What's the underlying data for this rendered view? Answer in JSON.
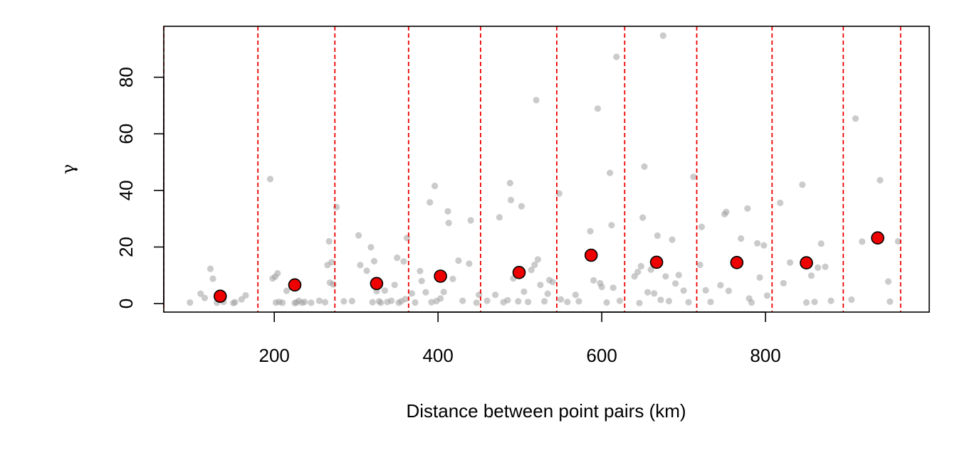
{
  "chart_data": {
    "type": "scatter",
    "title": "",
    "xlabel": "Distance between point pairs (km)",
    "ylabel": "γ",
    "xlim": [
      65,
      1000
    ],
    "ylim": [
      -3,
      98
    ],
    "x_ticks": [
      200,
      400,
      600,
      800
    ],
    "y_ticks": [
      0,
      20,
      40,
      60,
      80
    ],
    "grid": false,
    "legend": "none",
    "colors": {
      "points": "#a0a0a0",
      "binned": "#ee0000",
      "binned_edge": "#000000",
      "breaks": "#ee0000"
    },
    "bin_breaks": [
      65,
      180,
      274,
      364,
      452,
      545,
      628,
      716,
      808,
      895,
      965
    ],
    "binned_semivariance": [
      {
        "x": 134,
        "y": 2.6
      },
      {
        "x": 225,
        "y": 6.6
      },
      {
        "x": 325,
        "y": 7.1
      },
      {
        "x": 403,
        "y": 9.7
      },
      {
        "x": 499,
        "y": 11.0
      },
      {
        "x": 587,
        "y": 17.1
      },
      {
        "x": 667,
        "y": 14.6
      },
      {
        "x": 765,
        "y": 14.5
      },
      {
        "x": 850,
        "y": 14.4
      },
      {
        "x": 937,
        "y": 23.2
      }
    ],
    "pairs": [
      [
        97,
        0.4
      ],
      [
        110,
        3.5
      ],
      [
        115,
        2.0
      ],
      [
        122,
        12.3
      ],
      [
        125,
        8.8
      ],
      [
        130,
        0.3
      ],
      [
        138,
        0.6
      ],
      [
        150,
        0.2
      ],
      [
        152,
        0.5
      ],
      [
        160,
        1.5
      ],
      [
        165,
        2.9
      ],
      [
        195,
        44
      ],
      [
        198,
        8.9
      ],
      [
        201,
        9.5
      ],
      [
        202,
        0.4
      ],
      [
        204,
        10.7
      ],
      [
        206,
        0.6
      ],
      [
        210,
        0.3
      ],
      [
        215,
        4.5
      ],
      [
        225,
        0.2
      ],
      [
        227,
        0.4
      ],
      [
        230,
        1.0
      ],
      [
        234,
        0.3
      ],
      [
        237,
        0.6
      ],
      [
        245,
        0.3
      ],
      [
        255,
        1.0
      ],
      [
        262,
        0.5
      ],
      [
        265,
        13.6
      ],
      [
        267,
        22.0
      ],
      [
        268,
        7.4
      ],
      [
        270,
        14.6
      ],
      [
        272,
        6.8
      ],
      [
        276,
        34.1
      ],
      [
        285,
        0.8
      ],
      [
        295,
        0.9
      ],
      [
        303,
        24.1
      ],
      [
        305,
        13.6
      ],
      [
        313,
        11.6
      ],
      [
        318,
        19.9
      ],
      [
        320,
        0.5
      ],
      [
        322,
        15.0
      ],
      [
        325,
        4.4
      ],
      [
        328,
        0.8
      ],
      [
        330,
        0.3
      ],
      [
        335,
        4.6
      ],
      [
        338,
        0.6
      ],
      [
        343,
        1.0
      ],
      [
        347,
        6.6
      ],
      [
        350,
        16.2
      ],
      [
        352,
        0.3
      ],
      [
        355,
        0.8
      ],
      [
        358,
        14.9
      ],
      [
        360,
        1.6
      ],
      [
        362,
        23.2
      ],
      [
        368,
        3.6
      ],
      [
        372,
        0.4
      ],
      [
        378,
        11.5
      ],
      [
        380,
        8.0
      ],
      [
        385,
        4.0
      ],
      [
        390,
        35.8
      ],
      [
        392,
        0.5
      ],
      [
        396,
        41.6
      ],
      [
        398,
        0.9
      ],
      [
        403,
        1.8
      ],
      [
        407,
        4.1
      ],
      [
        412,
        32.6
      ],
      [
        413,
        28.5
      ],
      [
        418,
        8.7
      ],
      [
        425,
        15.2
      ],
      [
        430,
        1.0
      ],
      [
        438,
        14.1
      ],
      [
        440,
        29.4
      ],
      [
        447,
        0.3
      ],
      [
        450,
        3.1
      ],
      [
        460,
        1.0
      ],
      [
        470,
        3.1
      ],
      [
        475,
        30.5
      ],
      [
        480,
        0.5
      ],
      [
        485,
        1.2
      ],
      [
        488,
        42.6
      ],
      [
        489,
        36.6
      ],
      [
        492,
        8.9
      ],
      [
        498,
        0.8
      ],
      [
        502,
        34.4
      ],
      [
        505,
        4.2
      ],
      [
        510,
        0.6
      ],
      [
        514,
        11.9
      ],
      [
        518,
        13.7
      ],
      [
        520,
        71.9
      ],
      [
        522,
        15.6
      ],
      [
        525,
        6.6
      ],
      [
        530,
        0.8
      ],
      [
        534,
        3.5
      ],
      [
        536,
        8.3
      ],
      [
        540,
        7.6
      ],
      [
        548,
        38.9
      ],
      [
        550,
        1.5
      ],
      [
        558,
        0.6
      ],
      [
        568,
        3.1
      ],
      [
        572,
        0.8
      ],
      [
        586,
        25.6
      ],
      [
        590,
        8.2
      ],
      [
        595,
        68.9
      ],
      [
        598,
        7.2
      ],
      [
        600,
        5.9
      ],
      [
        606,
        0.4
      ],
      [
        610,
        46.2
      ],
      [
        612,
        27.7
      ],
      [
        614,
        5.6
      ],
      [
        618,
        87.2
      ],
      [
        622,
        1.0
      ],
      [
        640,
        9.6
      ],
      [
        644,
        11.2
      ],
      [
        646,
        0.2
      ],
      [
        648,
        13.2
      ],
      [
        650,
        30.4
      ],
      [
        652,
        48.4
      ],
      [
        656,
        4.0
      ],
      [
        660,
        12.0
      ],
      [
        664,
        3.6
      ],
      [
        668,
        24.0
      ],
      [
        672,
        1.3
      ],
      [
        675,
        94.7
      ],
      [
        678,
        9.6
      ],
      [
        682,
        0.9
      ],
      [
        686,
        22.6
      ],
      [
        690,
        7.1
      ],
      [
        694,
        10.1
      ],
      [
        700,
        4.6
      ],
      [
        706,
        0.5
      ],
      [
        712,
        44.8
      ],
      [
        720,
        13.7
      ],
      [
        722,
        27.1
      ],
      [
        727,
        4.7
      ],
      [
        733,
        0.6
      ],
      [
        745,
        6.5
      ],
      [
        750,
        31.6
      ],
      [
        752,
        32.4
      ],
      [
        755,
        4.5
      ],
      [
        762,
        14.8
      ],
      [
        770,
        23.0
      ],
      [
        778,
        33.6
      ],
      [
        780,
        1.8
      ],
      [
        783,
        0.4
      ],
      [
        790,
        21.3
      ],
      [
        793,
        9.2
      ],
      [
        798,
        20.6
      ],
      [
        802,
        2.8
      ],
      [
        818,
        35.6
      ],
      [
        822,
        7.2
      ],
      [
        830,
        14.5
      ],
      [
        845,
        42.0
      ],
      [
        850,
        0.4
      ],
      [
        856,
        9.9
      ],
      [
        860,
        0.6
      ],
      [
        864,
        12.7
      ],
      [
        868,
        21.2
      ],
      [
        873,
        13.0
      ],
      [
        880,
        1.0
      ],
      [
        905,
        1.4
      ],
      [
        910,
        65.4
      ],
      [
        918,
        21.9
      ],
      [
        940,
        43.6
      ],
      [
        950,
        7.8
      ],
      [
        952,
        0.7
      ],
      [
        962,
        22.0
      ]
    ]
  }
}
